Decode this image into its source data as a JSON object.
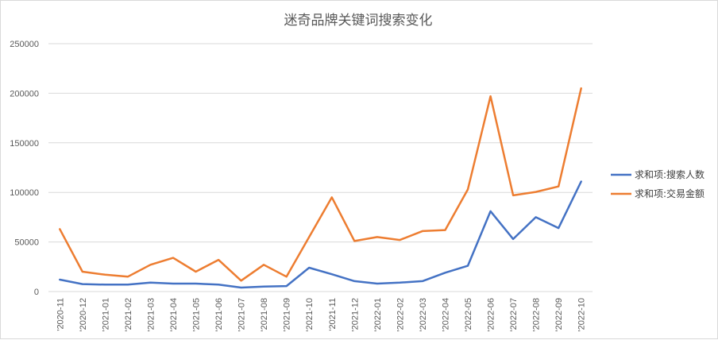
{
  "chart_data": {
    "type": "line",
    "title": "迷奇品牌关键词搜索变化",
    "xlabel": "",
    "ylabel": "",
    "ylim": [
      0,
      250000
    ],
    "yticks": [
      "0",
      "50000",
      "100000",
      "150000",
      "200000",
      "250000"
    ],
    "grid": true,
    "legend_position": "right",
    "categories": [
      "'2020-11",
      "'2020-12",
      "'2021-01",
      "'2021-02",
      "'2021-03",
      "'2021-04",
      "'2021-05",
      "'2021-06",
      "'2021-07",
      "'2021-08",
      "'2021-09",
      "'2021-10",
      "'2021-11",
      "'2021-12",
      "'2022-01",
      "'2022-02",
      "'2022-03",
      "'2022-04",
      "'2022-05",
      "'2022-06",
      "'2022-07",
      "'2022-08",
      "'2022-09",
      "'2022-10"
    ],
    "series": [
      {
        "name": "求和项:搜索人数",
        "color": "#4472c4",
        "values": [
          12000,
          7500,
          7000,
          7000,
          9000,
          8000,
          8000,
          7000,
          4000,
          5000,
          5500,
          24000,
          17500,
          10500,
          8000,
          9000,
          10500,
          19000,
          26000,
          81000,
          53000,
          75000,
          64000,
          111000
        ]
      },
      {
        "name": "求和项:交易金额",
        "color": "#ed7d31",
        "values": [
          63000,
          20000,
          17000,
          15000,
          27000,
          34000,
          20000,
          32000,
          11000,
          27000,
          15000,
          55000,
          95000,
          51000,
          55000,
          52000,
          61000,
          62000,
          103000,
          197000,
          97000,
          100500,
          106000,
          205000
        ]
      }
    ]
  }
}
